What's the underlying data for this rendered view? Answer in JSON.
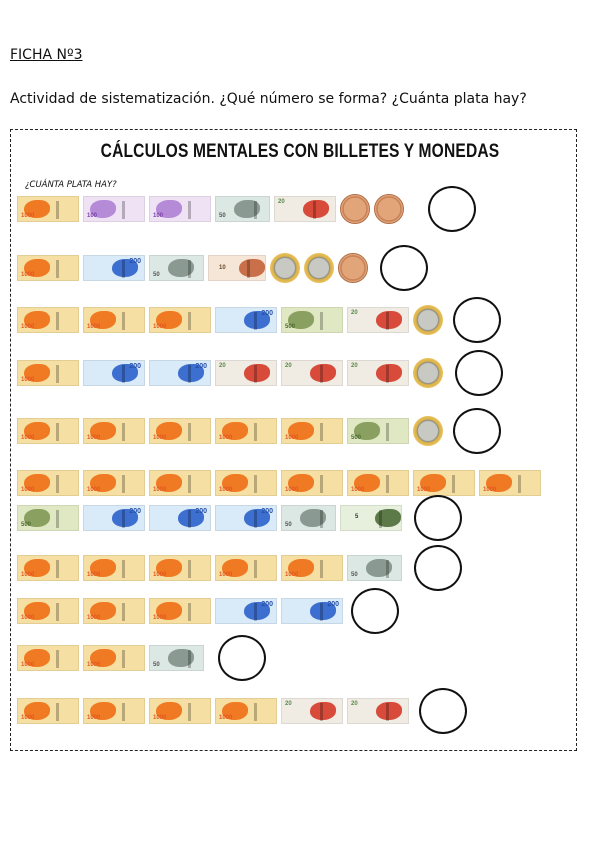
{
  "header": {
    "ficha": "FICHA Nº3",
    "instructions": "Actividad de sistematización. ¿Qué número se forma? ¿Cuánta plata hay?"
  },
  "worksheet": {
    "title": "CÁLCULOS MENTALES CON BILLETES Y MONEDAS",
    "subtitle": "¿CUÁNTA PLATA HAY?",
    "rows": [
      {
        "items": [
          "1000",
          "100",
          "100",
          "50",
          "20",
          "coin-1",
          "coin-1"
        ],
        "answer": ""
      },
      {
        "items": [
          "1000",
          "200",
          "50",
          "10",
          "coin-2",
          "coin-2",
          "coin-1"
        ],
        "answer": ""
      },
      {
        "items": [
          "1000",
          "1000",
          "1000",
          "200",
          "500",
          "20",
          "coin-2"
        ],
        "answer": ""
      },
      {
        "items": [
          "1000",
          "200",
          "200",
          "20",
          "20",
          "20",
          "coin-2"
        ],
        "answer": ""
      },
      {
        "items": [
          "1000",
          "1000",
          "1000",
          "1000",
          "1000",
          "500",
          "coin-2"
        ],
        "answer": ""
      },
      {
        "items": [
          "1000",
          "1000",
          "1000",
          "1000",
          "1000",
          "1000",
          "1000",
          "1000"
        ],
        "no_answer": true
      },
      {
        "items": [
          "500",
          "200",
          "200",
          "200",
          "50",
          "5"
        ],
        "answer": ""
      },
      {
        "items": [
          "1000",
          "1000",
          "1000",
          "1000",
          "1000",
          "50"
        ],
        "answer": ""
      },
      {
        "items": [
          "1000",
          "1000",
          "1000",
          "200",
          "200"
        ],
        "answer": ""
      },
      {
        "items": [
          "1000",
          "1000",
          "50"
        ],
        "answer": ""
      },
      {
        "items": [
          "1000",
          "1000",
          "1000",
          "1000",
          "20",
          "20"
        ],
        "answer": ""
      }
    ]
  },
  "colors": {
    "bill_1000": "#f6dfa2",
    "bill_200": "#d9eaf8",
    "bill_100": "#efe2f5",
    "bill_500": "#dfe8c2",
    "bill_20": "#f0ebe3",
    "coin_1": "#e2a57a",
    "coin_2_ring": "#f0c860"
  }
}
